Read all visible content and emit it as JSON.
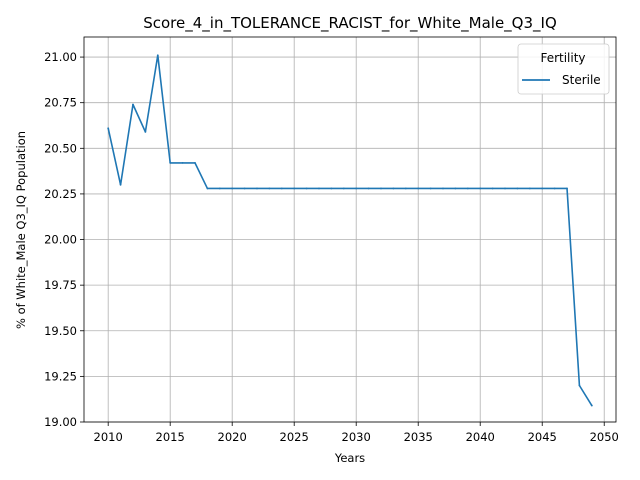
{
  "chart_data": {
    "type": "line",
    "title": "Score_4_in_TOLERANCE_RACIST_for_White_Male_Q3_IQ",
    "xlabel": "Years",
    "ylabel": "% of White_Male Q3_IQ Population",
    "xlim": [
      2008.05,
      2050.95
    ],
    "ylim": [
      19.0,
      21.11
    ],
    "xticks": [
      2010,
      2015,
      2020,
      2025,
      2030,
      2035,
      2040,
      2045,
      2050
    ],
    "yticks": [
      19.0,
      19.25,
      19.5,
      19.75,
      20.0,
      20.25,
      20.5,
      20.75,
      21.0
    ],
    "ytick_labels": [
      "19.00",
      "19.25",
      "19.50",
      "19.75",
      "20.00",
      "20.25",
      "20.50",
      "20.75",
      "21.00"
    ],
    "grid": true,
    "legend": {
      "title": "Fertility",
      "placement": "top-right"
    },
    "series": [
      {
        "name": "Sterile",
        "color": "#1f77b4",
        "x": [
          2010,
          2011,
          2012,
          2013,
          2014,
          2015,
          2016,
          2017,
          2018,
          2019,
          2020,
          2021,
          2022,
          2023,
          2024,
          2025,
          2026,
          2027,
          2028,
          2029,
          2030,
          2031,
          2032,
          2033,
          2034,
          2035,
          2036,
          2037,
          2038,
          2039,
          2040,
          2041,
          2042,
          2043,
          2044,
          2045,
          2046,
          2047,
          2048,
          2049
        ],
        "values": [
          20.61,
          20.3,
          20.74,
          20.59,
          21.01,
          20.42,
          20.42,
          20.42,
          20.28,
          20.28,
          20.28,
          20.28,
          20.28,
          20.28,
          20.28,
          20.28,
          20.28,
          20.28,
          20.28,
          20.28,
          20.28,
          20.28,
          20.28,
          20.28,
          20.28,
          20.28,
          20.28,
          20.28,
          20.28,
          20.28,
          20.28,
          20.28,
          20.28,
          20.28,
          20.28,
          20.28,
          20.28,
          20.28,
          19.2,
          19.09
        ]
      }
    ]
  }
}
